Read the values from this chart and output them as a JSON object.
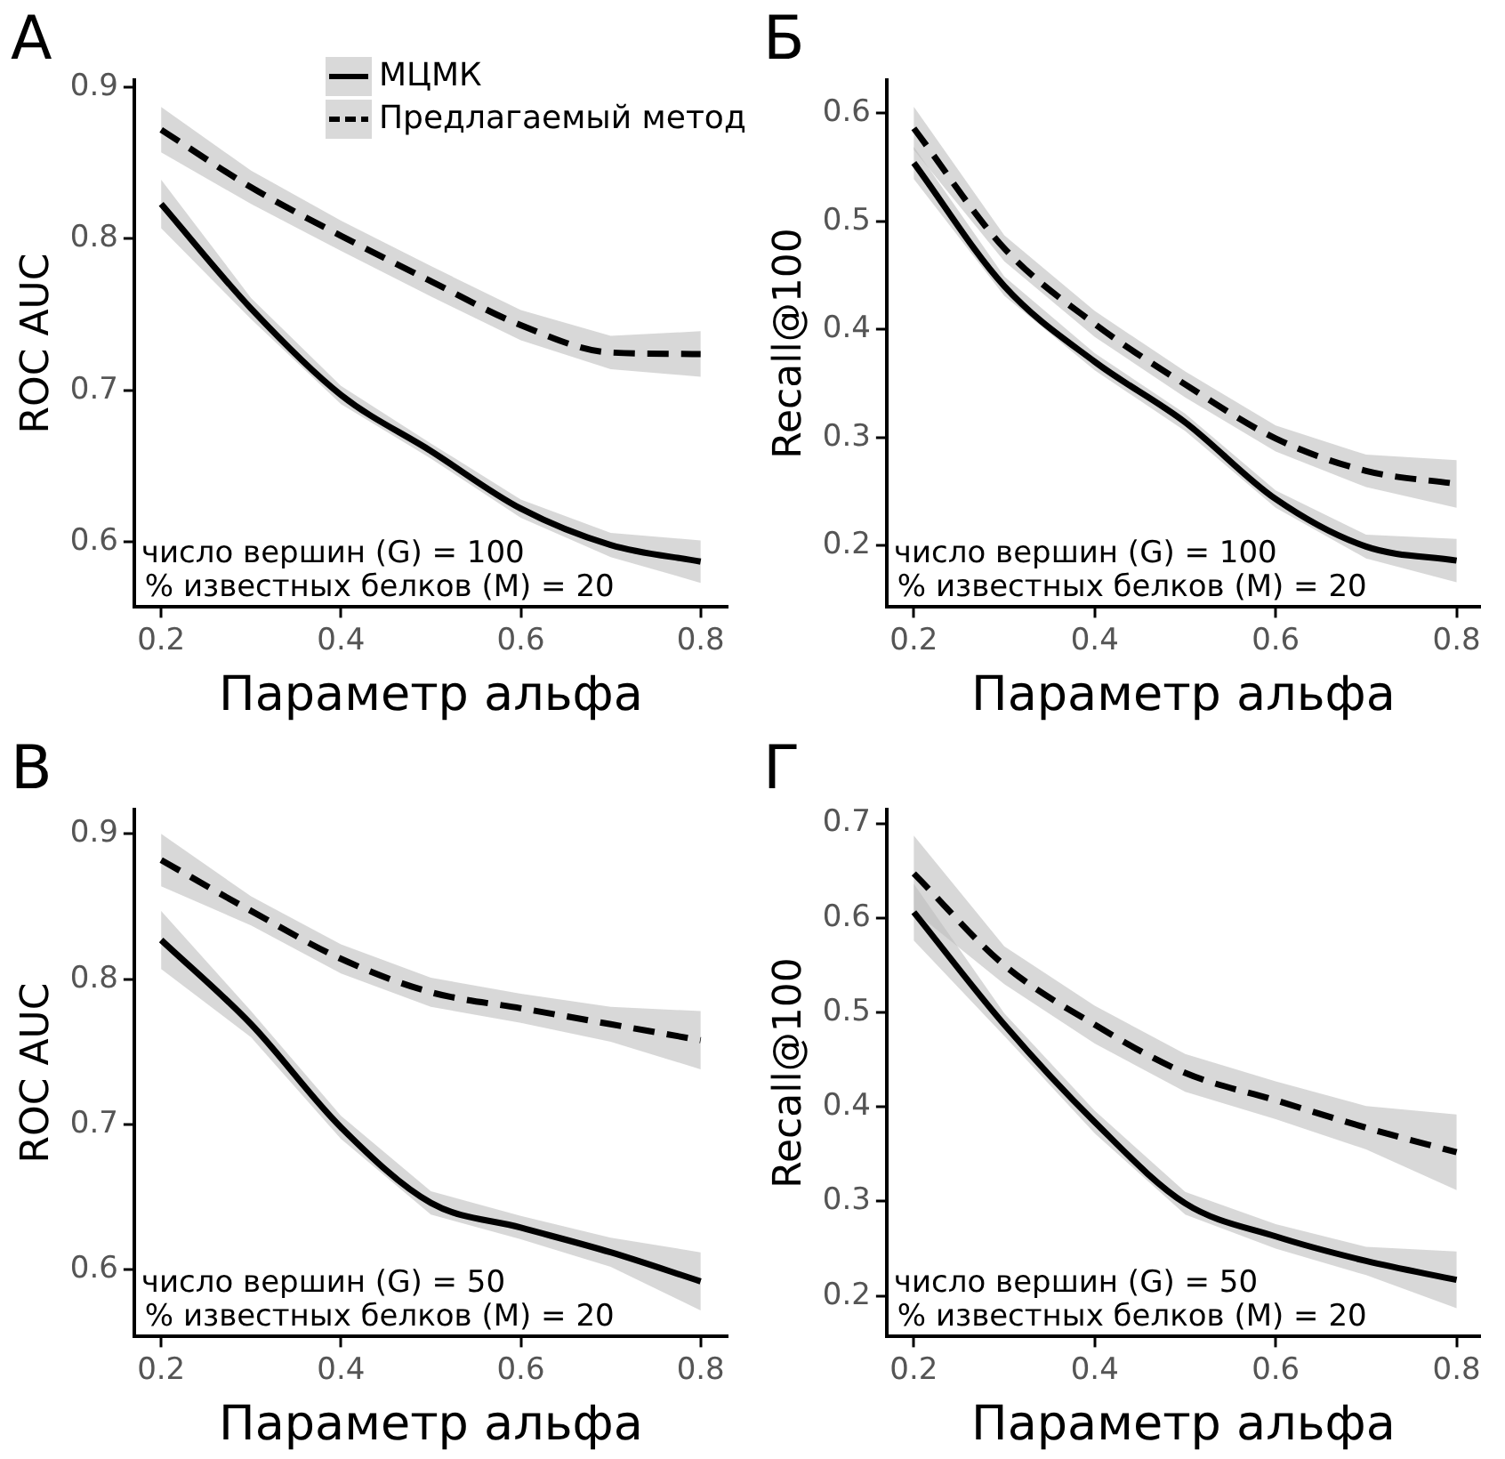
{
  "chart_data": [
    {
      "type": "line",
      "title": "А",
      "xlabel": "Параметр альфа",
      "ylabel": "ROC AUC",
      "x": [
        0.2,
        0.3,
        0.4,
        0.5,
        0.6,
        0.7,
        0.8
      ],
      "series": [
        {
          "name": "МЦМК",
          "color": "#000000",
          "line_style": "solid",
          "values": [
            0.823,
            0.754,
            0.697,
            0.66,
            0.622,
            0.598,
            0.587
          ],
          "lower": [
            0.807,
            0.747,
            0.691,
            0.655,
            0.616,
            0.59,
            0.573
          ],
          "upper": [
            0.839,
            0.761,
            0.703,
            0.665,
            0.628,
            0.606,
            0.601
          ]
        },
        {
          "name": "Предлагаемый метод",
          "color": "#000000",
          "line_style": "dashed",
          "values": [
            0.872,
            0.834,
            0.802,
            0.772,
            0.743,
            0.725,
            0.724
          ],
          "lower": [
            0.857,
            0.823,
            0.792,
            0.762,
            0.733,
            0.714,
            0.709
          ],
          "upper": [
            0.887,
            0.845,
            0.812,
            0.782,
            0.753,
            0.736,
            0.739
          ]
        }
      ],
      "xlim": [
        0.17,
        0.83
      ],
      "xticks": [
        0.2,
        0.4,
        0.6,
        0.8
      ],
      "ylim": [
        0.557,
        0.905
      ],
      "yticks": [
        0.6,
        0.7,
        0.8,
        0.9
      ],
      "grid": false,
      "legend": "top right",
      "annotations": [
        "число вершин (G) = 100",
        "% известных белков (M) = 20"
      ]
    },
    {
      "type": "line",
      "title": "Б",
      "xlabel": "Параметр альфа",
      "ylabel": "Recall@100",
      "x": [
        0.2,
        0.3,
        0.4,
        0.5,
        0.6,
        0.7,
        0.8
      ],
      "series": [
        {
          "color": "#000000",
          "line_style": "solid",
          "values": [
            0.554,
            0.44,
            0.37,
            0.314,
            0.243,
            0.199,
            0.186
          ],
          "lower": [
            0.539,
            0.431,
            0.362,
            0.306,
            0.235,
            0.188,
            0.166
          ],
          "upper": [
            0.569,
            0.449,
            0.378,
            0.322,
            0.251,
            0.21,
            0.206
          ]
        },
        {
          "color": "#000000",
          "line_style": "dashed",
          "values": [
            0.586,
            0.475,
            0.405,
            0.349,
            0.299,
            0.269,
            0.257
          ],
          "lower": [
            0.566,
            0.463,
            0.393,
            0.337,
            0.287,
            0.254,
            0.235
          ],
          "upper": [
            0.606,
            0.487,
            0.417,
            0.361,
            0.311,
            0.284,
            0.279
          ]
        }
      ],
      "xlim": [
        0.17,
        0.826
      ],
      "xticks": [
        0.2,
        0.4,
        0.6,
        0.8
      ],
      "ylim": [
        0.143,
        0.631
      ],
      "yticks": [
        0.2,
        0.3,
        0.4,
        0.5,
        0.6
      ],
      "grid": false,
      "annotations": [
        "число вершин (G) = 100",
        "% известных белков (M) = 20"
      ]
    },
    {
      "type": "line",
      "title": "В",
      "xlabel": "Параметр альфа",
      "ylabel": "ROC AUC",
      "x": [
        0.2,
        0.3,
        0.4,
        0.5,
        0.6,
        0.7,
        0.8
      ],
      "series": [
        {
          "color": "#000000",
          "line_style": "solid",
          "values": [
            0.827,
            0.769,
            0.698,
            0.646,
            0.629,
            0.612,
            0.592
          ],
          "lower": [
            0.807,
            0.76,
            0.69,
            0.638,
            0.621,
            0.602,
            0.572
          ],
          "upper": [
            0.847,
            0.778,
            0.706,
            0.654,
            0.637,
            0.622,
            0.612
          ]
        },
        {
          "color": "#000000",
          "line_style": "dashed",
          "values": [
            0.882,
            0.847,
            0.814,
            0.791,
            0.78,
            0.769,
            0.758
          ],
          "lower": [
            0.864,
            0.837,
            0.804,
            0.781,
            0.77,
            0.757,
            0.738
          ],
          "upper": [
            0.9,
            0.857,
            0.824,
            0.801,
            0.79,
            0.781,
            0.778
          ]
        }
      ],
      "xlim": [
        0.17,
        0.83
      ],
      "xticks": [
        0.2,
        0.4,
        0.6,
        0.8
      ],
      "ylim": [
        0.554,
        0.917
      ],
      "yticks": [
        0.6,
        0.7,
        0.8,
        0.9
      ],
      "grid": false,
      "annotations": [
        "число вершин (G) = 50",
        "% известных белков (M) = 20"
      ]
    },
    {
      "type": "line",
      "title": "Г",
      "xlabel": "Параметр альфа",
      "ylabel": "Recall@100",
      "x": [
        0.2,
        0.3,
        0.4,
        0.5,
        0.6,
        0.7,
        0.8
      ],
      "series": [
        {
          "color": "#000000",
          "line_style": "solid",
          "values": [
            0.606,
            0.487,
            0.384,
            0.298,
            0.263,
            0.237,
            0.217
          ],
          "lower": [
            0.576,
            0.475,
            0.372,
            0.286,
            0.25,
            0.222,
            0.187
          ],
          "upper": [
            0.636,
            0.499,
            0.396,
            0.31,
            0.276,
            0.252,
            0.247
          ]
        },
        {
          "color": "#000000",
          "line_style": "dashed",
          "values": [
            0.647,
            0.55,
            0.487,
            0.436,
            0.407,
            0.378,
            0.352
          ],
          "lower": [
            0.607,
            0.53,
            0.467,
            0.416,
            0.387,
            0.355,
            0.312
          ],
          "upper": [
            0.687,
            0.57,
            0.507,
            0.456,
            0.427,
            0.401,
            0.392
          ]
        }
      ],
      "xlim": [
        0.17,
        0.826
      ],
      "xticks": [
        0.2,
        0.4,
        0.6,
        0.8
      ],
      "ylim": [
        0.157,
        0.715
      ],
      "yticks": [
        0.2,
        0.3,
        0.4,
        0.5,
        0.6,
        0.7
      ],
      "grid": false,
      "annotations": [
        "число вершин (G) = 50",
        "% известных белков (M) = 20"
      ]
    }
  ]
}
